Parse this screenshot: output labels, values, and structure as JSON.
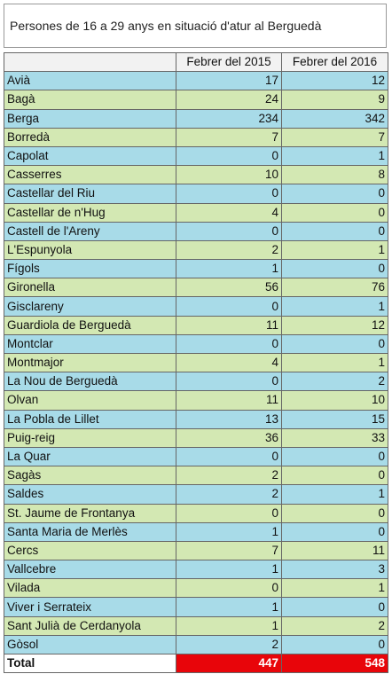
{
  "title": "Persones de 16 a 29 anys en situació d'atur al Berguedà",
  "table": {
    "header": [
      "Febrer del 2015",
      "Febrer del 2016"
    ],
    "rows": [
      [
        "Avià",
        17,
        12
      ],
      [
        "Bagà",
        24,
        9
      ],
      [
        "Berga",
        234,
        342
      ],
      [
        "Borredà",
        7,
        7
      ],
      [
        "Capolat",
        0,
        1
      ],
      [
        "Casserres",
        10,
        8
      ],
      [
        "Castellar del Riu",
        0,
        0
      ],
      [
        "Castellar de n'Hug",
        4,
        0
      ],
      [
        "Castell de l'Areny",
        0,
        0
      ],
      [
        "L'Espunyola",
        2,
        1
      ],
      [
        "Fígols",
        1,
        0
      ],
      [
        "Gironella",
        56,
        76
      ],
      [
        "Gisclareny",
        0,
        1
      ],
      [
        "Guardiola de Berguedà",
        11,
        12
      ],
      [
        "Montclar",
        0,
        0
      ],
      [
        "Montmajor",
        4,
        1
      ],
      [
        "La Nou de Berguedà",
        0,
        2
      ],
      [
        "Olvan",
        11,
        10
      ],
      [
        "La Pobla de Lillet",
        13,
        15
      ],
      [
        "Puig-reig",
        36,
        33
      ],
      [
        "La Quar",
        0,
        0
      ],
      [
        "Sagàs",
        2,
        0
      ],
      [
        "Saldes",
        2,
        1
      ],
      [
        "St. Jaume de Frontanya",
        0,
        0
      ],
      [
        "Santa Maria de Merlès",
        1,
        0
      ],
      [
        "Cercs",
        7,
        11
      ],
      [
        "Vallcebre",
        1,
        3
      ],
      [
        "Vilada",
        0,
        1
      ],
      [
        "Viver i Serrateix",
        1,
        0
      ],
      [
        "Sant Julià de Cerdanyola",
        1,
        2
      ],
      [
        "Gòsol",
        2,
        0
      ]
    ],
    "total": [
      "Total",
      447,
      548
    ]
  }
}
